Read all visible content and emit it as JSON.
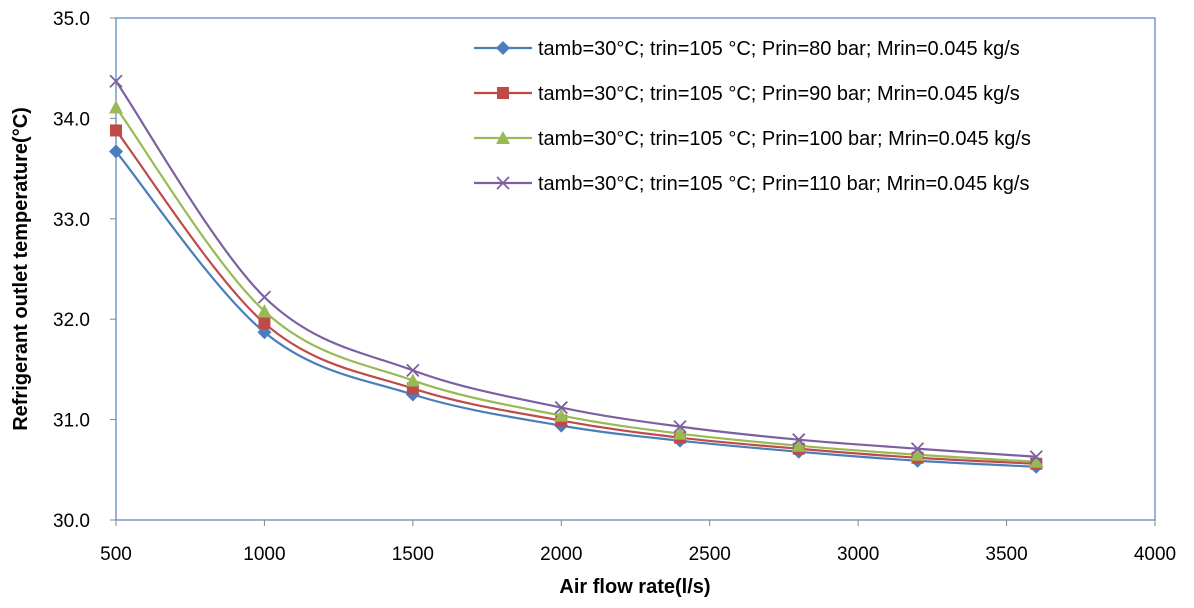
{
  "chart_data": {
    "type": "line",
    "title": "",
    "xlabel": "Air flow rate(l/s)",
    "ylabel": "Refrigerant outlet temperature(°C)",
    "xlim": [
      500,
      4000
    ],
    "ylim": [
      30.0,
      35.0
    ],
    "xticks": [
      "500",
      "1000",
      "1500",
      "2000",
      "2500",
      "3000",
      "3500",
      "4000"
    ],
    "yticks": [
      "30.0",
      "31.0",
      "32.0",
      "33.0",
      "34.0",
      "35.0"
    ],
    "grid": false,
    "legend_position": "top-right",
    "x": [
      500,
      1000,
      1500,
      2000,
      2400,
      2800,
      3200,
      3600
    ],
    "series": [
      {
        "name": "tamb=30°C; trin=105 °C; Prin=80 bar; Mrin=0.045 kg/s",
        "color": "#4A7EBB",
        "marker": "diamond",
        "values": [
          33.67,
          31.87,
          31.25,
          30.94,
          30.79,
          30.68,
          30.59,
          30.53
        ]
      },
      {
        "name": "tamb=30°C; trin=105 °C; Prin=90 bar; Mrin=0.045 kg/s",
        "color": "#BE4B48",
        "marker": "square",
        "values": [
          33.88,
          31.96,
          31.31,
          30.99,
          30.82,
          30.71,
          30.62,
          30.56
        ]
      },
      {
        "name": "tamb=30°C; trin=105 °C; Prin=100 bar; Mrin=0.045 kg/s",
        "color": "#98B954",
        "marker": "triangle",
        "values": [
          34.11,
          32.08,
          31.39,
          31.04,
          30.86,
          30.74,
          30.65,
          30.58
        ]
      },
      {
        "name": "tamb=30°C; trin=105 °C; Prin=110 bar; Mrin=0.045 kg/s",
        "color": "#7D60A0",
        "marker": "x",
        "values": [
          34.37,
          32.22,
          31.49,
          31.12,
          30.93,
          30.8,
          30.71,
          30.63
        ]
      }
    ]
  }
}
